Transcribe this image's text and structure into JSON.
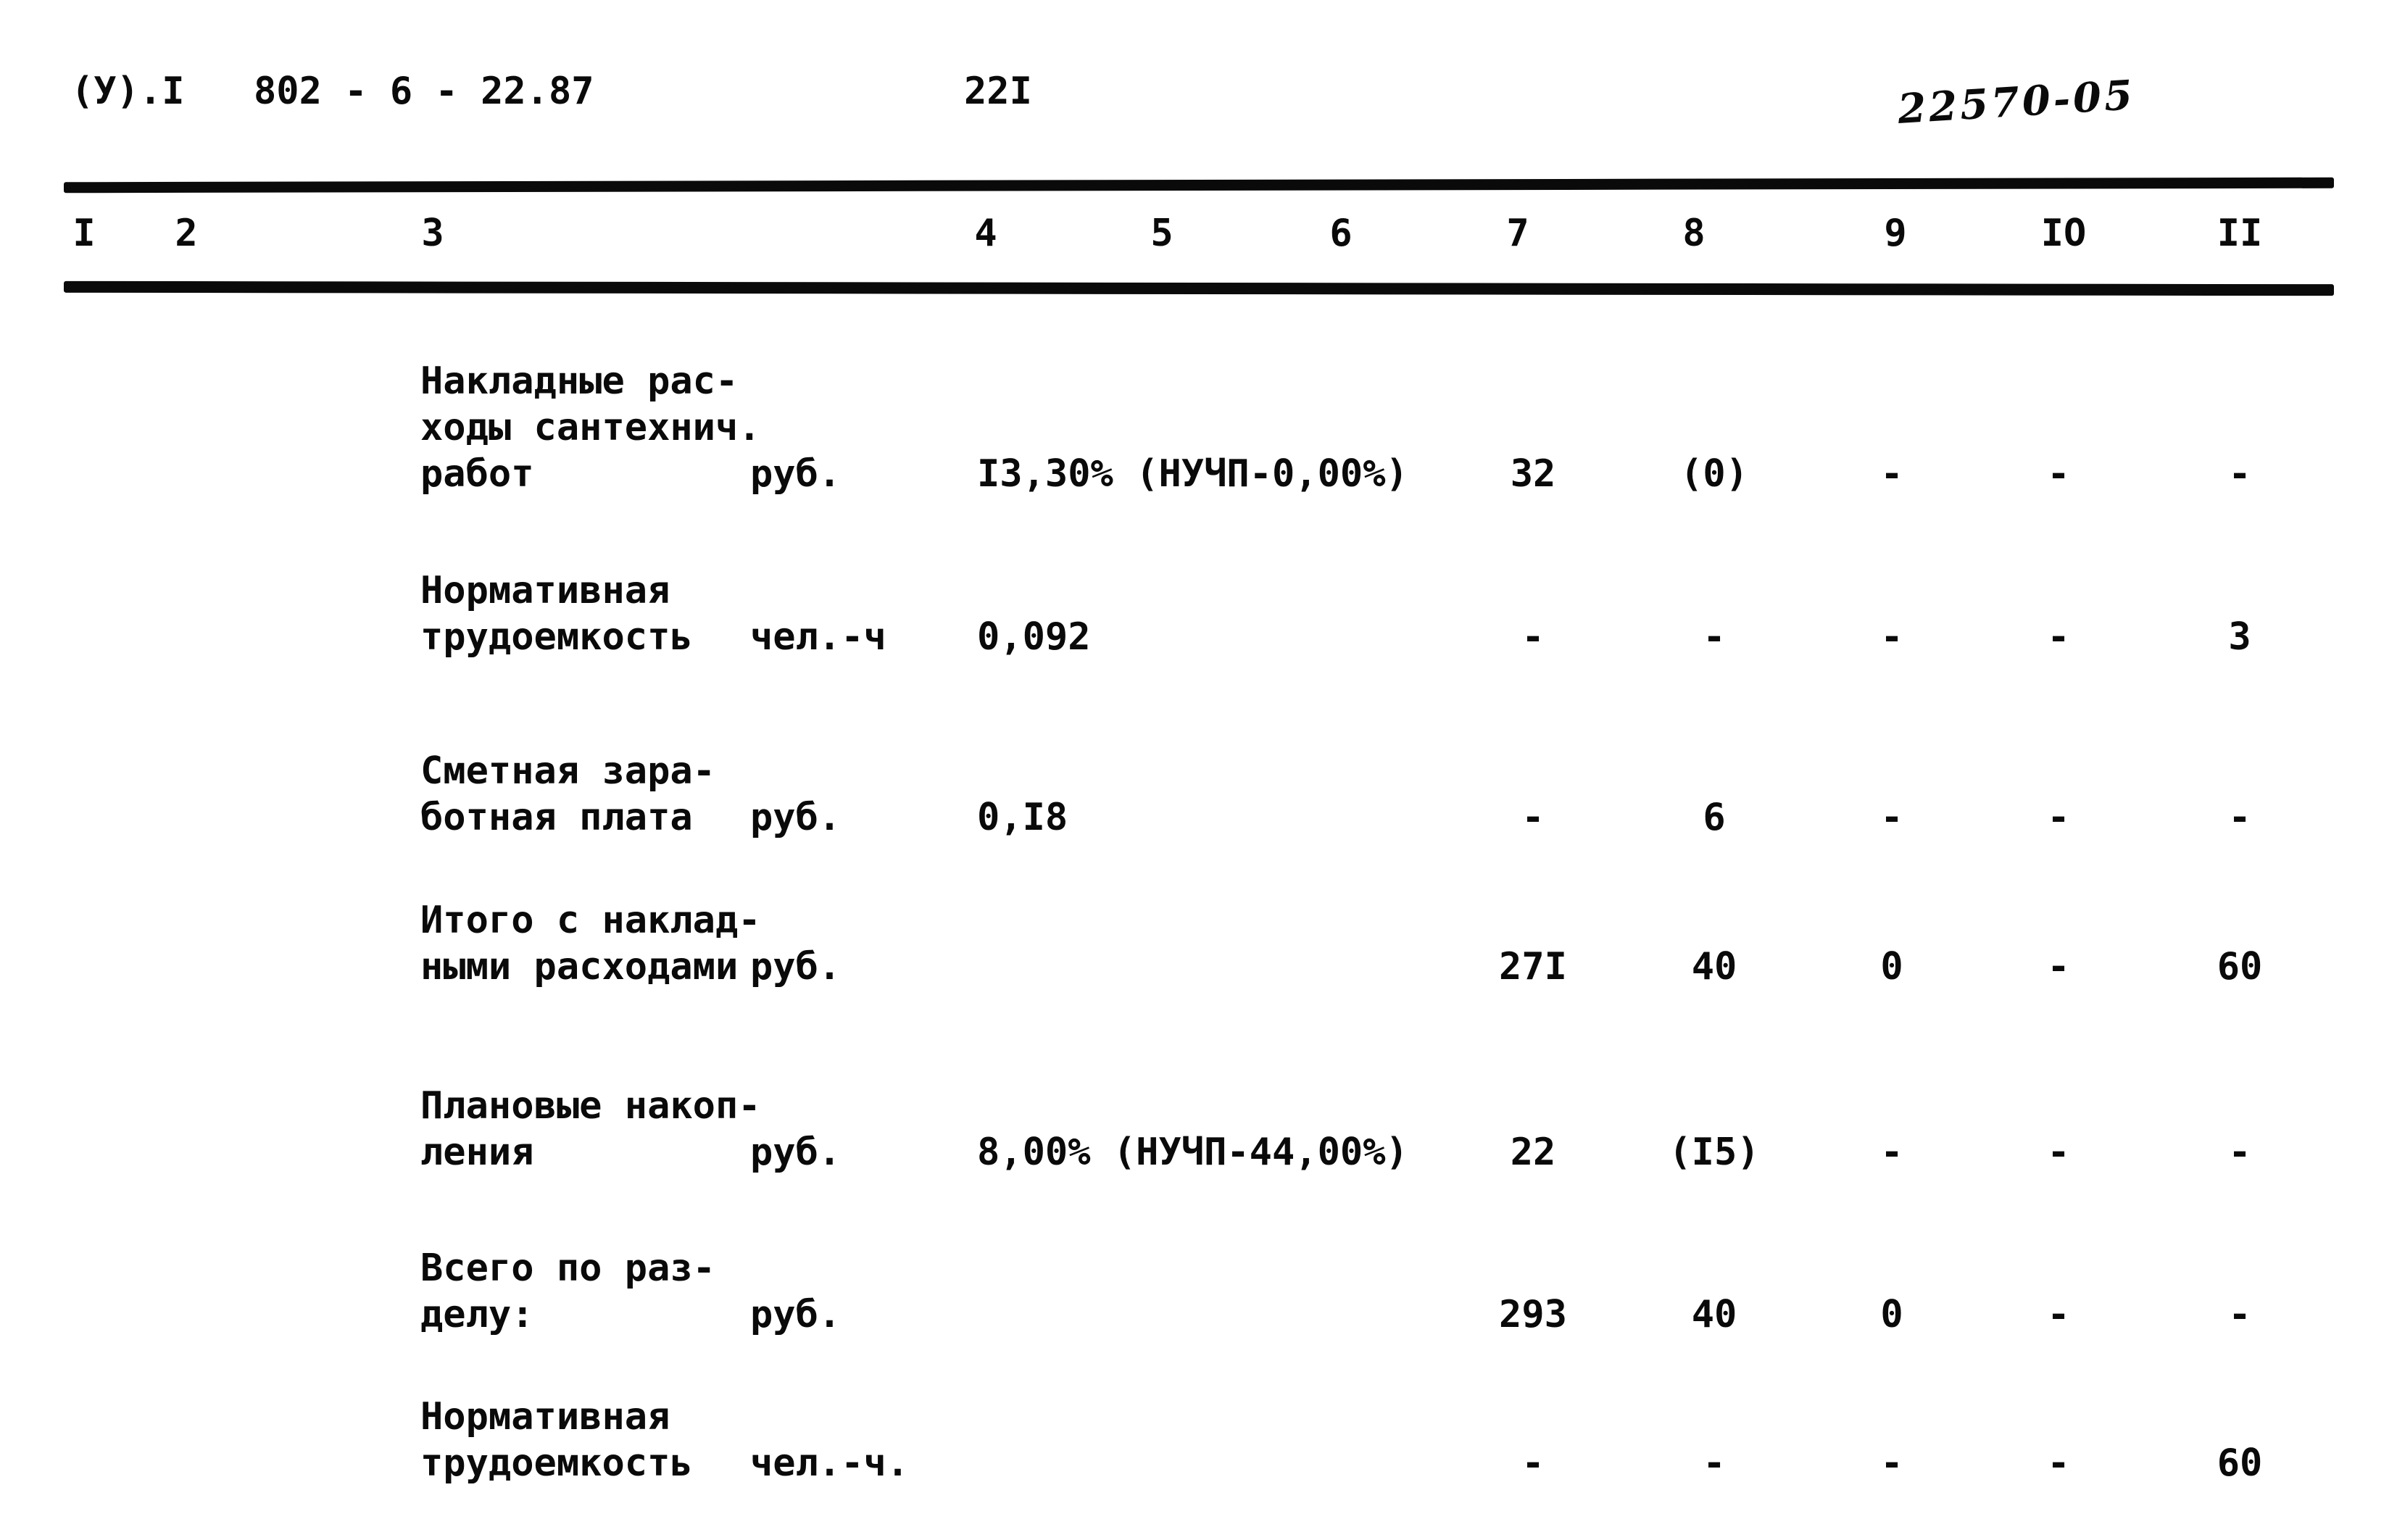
{
  "header": {
    "doc_series": "(У).I",
    "doc_number": "802 - 6 - 22.87",
    "page_number": "22I",
    "stamp": "22570-05"
  },
  "table": {
    "column_headers": [
      "I",
      "2",
      "3",
      "4",
      "5",
      "6",
      "7",
      "8",
      "9",
      "IO",
      "II"
    ],
    "rows": [
      {
        "label_lines": [
          "Накладные рас-",
          "ходы сантехнич.",
          "работ"
        ],
        "unit": "руб.",
        "rate": "I3,30% (НУЧП-0,00%)",
        "values": [
          "32",
          "(0)",
          "-",
          "-",
          "-"
        ]
      },
      {
        "label_lines": [
          "Нормативная",
          "трудоемкость"
        ],
        "unit": "чел.-ч",
        "rate": "0,092",
        "values": [
          "-",
          "-",
          "-",
          "-",
          "3"
        ]
      },
      {
        "label_lines": [
          "Сметная зара-",
          "ботная плата"
        ],
        "unit": "руб.",
        "rate": "0,I8",
        "values": [
          "-",
          "6",
          "-",
          "-",
          "-"
        ]
      },
      {
        "label_lines": [
          "Итого с наклад-",
          "ными расходами"
        ],
        "unit": "руб.",
        "rate": "",
        "values": [
          "27I",
          "40",
          "0",
          "-",
          "60"
        ]
      },
      {
        "label_lines": [
          "Плановые накоп-",
          "ления"
        ],
        "unit": "руб.",
        "rate": "8,00% (НУЧП-44,00%)",
        "values": [
          "22",
          "(I5)",
          "-",
          "-",
          "-"
        ]
      },
      {
        "label_lines": [
          "Всего по раз-",
          "делу:"
        ],
        "unit": "руб.",
        "rate": "",
        "values": [
          "293",
          "40",
          "0",
          "-",
          "-"
        ]
      },
      {
        "label_lines": [
          "Нормативная",
          "трудоемкость"
        ],
        "unit": "чел.-ч.",
        "rate": "",
        "values": [
          "-",
          "-",
          "-",
          "-",
          "60"
        ]
      }
    ]
  }
}
